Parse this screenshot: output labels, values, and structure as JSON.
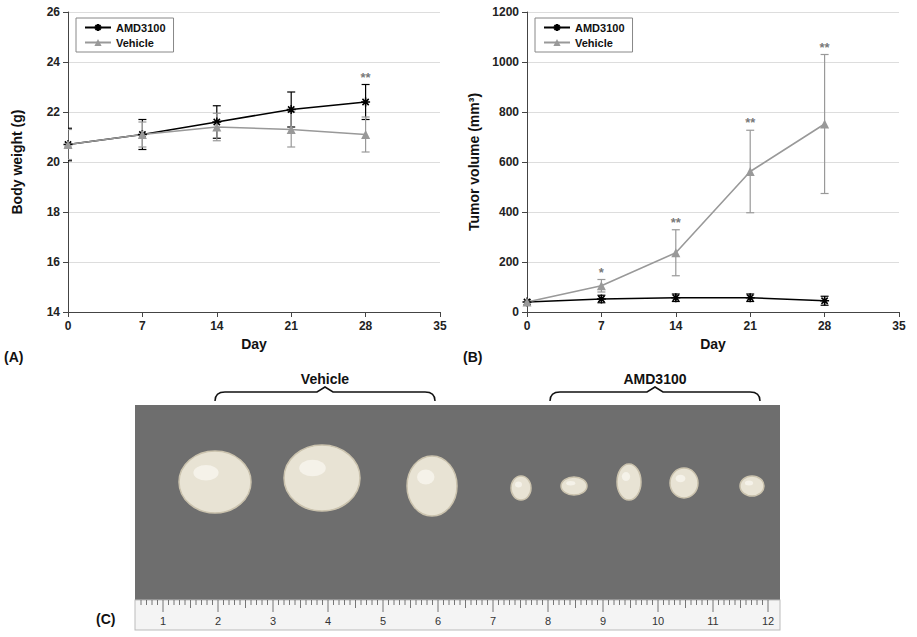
{
  "chart_data": [
    {
      "type": "line",
      "panel": "(A)",
      "x_label": "Day",
      "y_label": "Body weight (g)",
      "x": [
        0,
        7,
        14,
        21,
        28
      ],
      "xlim": [
        0,
        35
      ],
      "xticks": [
        0,
        7,
        14,
        21,
        28,
        35
      ],
      "ylim": [
        14,
        26
      ],
      "yticks": [
        14,
        16,
        18,
        20,
        22,
        24,
        26
      ],
      "grid": true,
      "legend": "upper left",
      "series": [
        {
          "name": "AMD3100",
          "color": "#000000",
          "marker": "asterisk",
          "line_style": "solid",
          "values": [
            20.7,
            21.1,
            21.6,
            22.1,
            22.4
          ],
          "errors": [
            0.65,
            0.6,
            0.65,
            0.7,
            0.7
          ]
        },
        {
          "name": "Vehicle",
          "color": "#999999",
          "marker": "triangle",
          "line_style": "solid",
          "values": [
            20.7,
            21.1,
            21.4,
            21.3,
            21.1
          ],
          "errors": [
            0.6,
            0.5,
            0.55,
            0.7,
            0.7
          ]
        }
      ],
      "annotations": [
        {
          "x": 28,
          "label": "**"
        }
      ]
    },
    {
      "type": "line",
      "panel": "(B)",
      "x_label": "Day",
      "y_label": "Tumor volume (mm³)",
      "x": [
        0,
        7,
        14,
        21,
        28
      ],
      "xlim": [
        0,
        35
      ],
      "xticks": [
        0,
        7,
        14,
        21,
        28,
        35
      ],
      "ylim": [
        0,
        1200
      ],
      "yticks": [
        0,
        200,
        400,
        600,
        800,
        1000,
        1200
      ],
      "grid": true,
      "legend": "upper left",
      "series": [
        {
          "name": "AMD3100",
          "color": "#000000",
          "marker": "asterisk",
          "line_style": "solid",
          "values": [
            40,
            52,
            57,
            57,
            45
          ],
          "errors": [
            10,
            15,
            15,
            15,
            18
          ]
        },
        {
          "name": "Vehicle",
          "color": "#999999",
          "marker": "triangle",
          "line_style": "solid",
          "values": [
            40,
            105,
            237,
            562,
            752
          ],
          "errors": [
            8,
            25,
            92,
            165,
            278
          ]
        }
      ],
      "annotations": [
        {
          "x": 7,
          "label": "*"
        },
        {
          "x": 14,
          "label": "**"
        },
        {
          "x": 21,
          "label": "**"
        },
        {
          "x": 28,
          "label": "**"
        }
      ]
    }
  ],
  "photo": {
    "panel": "(C)",
    "groups": [
      {
        "label": "Vehicle",
        "count": 3
      },
      {
        "label": "AMD3100",
        "count": 5
      }
    ],
    "ruler": [
      1,
      2,
      3,
      4,
      5,
      6,
      7,
      8,
      9,
      10,
      11,
      12
    ]
  }
}
